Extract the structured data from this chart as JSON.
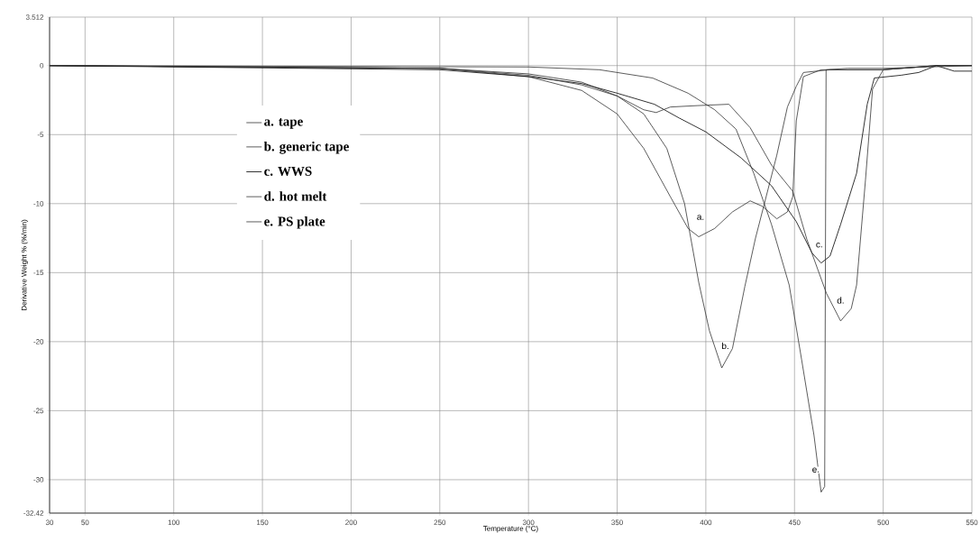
{
  "chart_data": {
    "type": "line",
    "xlabel": "Temperature (°C)",
    "ylabel": "Derivative Weight % (%/min)",
    "xlim": [
      30,
      550
    ],
    "xticks": [
      30,
      50,
      100,
      150,
      200,
      250,
      300,
      350,
      400,
      450,
      500,
      550
    ],
    "ylim": [
      -32.42,
      3.512
    ],
    "yticks": [
      -32.42,
      -30,
      -25,
      -20,
      -15,
      -10,
      -5,
      0,
      3.512
    ],
    "grid": true,
    "legend": "left",
    "marker": "none",
    "line_style": "solid",
    "series": [
      {
        "name": "a. tape",
        "color": "#333333",
        "x": [
          30,
          250,
          300,
          330,
          350,
          365,
          380,
          390,
          396,
          405,
          415,
          425,
          432,
          440,
          446,
          449,
          451,
          455,
          465,
          500,
          530,
          550
        ],
        "values": [
          0,
          -0.2,
          -0.8,
          -1.8,
          -3.5,
          -6,
          -9.5,
          -11.8,
          -12.4,
          -11.8,
          -10.6,
          -9.8,
          -10.2,
          -11.1,
          -10.6,
          -9.5,
          -4,
          -0.8,
          -0.3,
          -0.3,
          0,
          0
        ]
      },
      {
        "name": "b. generic tape",
        "color": "#333333",
        "x": [
          30,
          250,
          300,
          330,
          350,
          365,
          378,
          388,
          396,
          402,
          409,
          415,
          422,
          428,
          433,
          440,
          446,
          451,
          455,
          470,
          500,
          530,
          550
        ],
        "values": [
          0,
          -0.2,
          -0.6,
          -1.2,
          -2.2,
          -3.5,
          -6,
          -10,
          -15.7,
          -19.2,
          -21.9,
          -20.5,
          -16,
          -12.5,
          -10,
          -6.5,
          -3,
          -1.5,
          -0.5,
          -0.3,
          -0.3,
          0,
          0
        ]
      },
      {
        "name": "c. WWS",
        "color": "#000000",
        "x": [
          30,
          250,
          300,
          330,
          350,
          371,
          385,
          400,
          420,
          437,
          451,
          460,
          465,
          470,
          476,
          485,
          491,
          495,
          510,
          520,
          530,
          540,
          550
        ],
        "values": [
          0,
          -0.3,
          -0.8,
          -1.3,
          -2,
          -2.8,
          -3.8,
          -4.8,
          -6.7,
          -8.7,
          -11.3,
          -13.6,
          -14.3,
          -13.8,
          -11.5,
          -7.8,
          -2.8,
          -0.9,
          -0.7,
          -0.5,
          0,
          -0.4,
          -0.4
        ]
      },
      {
        "name": "d. hot melt",
        "color": "#333333",
        "x": [
          30,
          250,
          300,
          330,
          350,
          365,
          372,
          380,
          395,
          413,
          425,
          437,
          449,
          457,
          468,
          476,
          482,
          485,
          490,
          494,
          500,
          530,
          550
        ],
        "values": [
          0,
          -0.2,
          -0.7,
          -1.4,
          -2.2,
          -3.2,
          -3.4,
          -3,
          -2.9,
          -2.8,
          -4.5,
          -7.2,
          -9.1,
          -12.6,
          -16.5,
          -18.5,
          -17.6,
          -15.9,
          -8.3,
          -1.7,
          -0.3,
          0,
          0
        ]
      },
      {
        "name": "e. PS plate",
        "color": "#333333",
        "x": [
          30,
          300,
          340,
          370,
          390,
          405,
          417,
          427,
          437,
          447,
          454,
          461,
          465,
          467,
          467.8,
          480,
          500,
          550
        ],
        "values": [
          0,
          -0.1,
          -0.3,
          -0.9,
          -2,
          -3.2,
          -4.6,
          -7.8,
          -11.5,
          -15.9,
          -21.3,
          -26.8,
          -30.9,
          -30.5,
          -0.3,
          -0.2,
          -0.2,
          0
        ]
      }
    ],
    "annotations": [
      {
        "text": "a.",
        "x": 397,
        "y": -11
      },
      {
        "text": "b.",
        "x": 411,
        "y": -20.3
      },
      {
        "text": "c.",
        "x": 464,
        "y": -13
      },
      {
        "text": "d.",
        "x": 476,
        "y": -17
      },
      {
        "text": "e.",
        "x": 462,
        "y": -29.3
      }
    ]
  }
}
